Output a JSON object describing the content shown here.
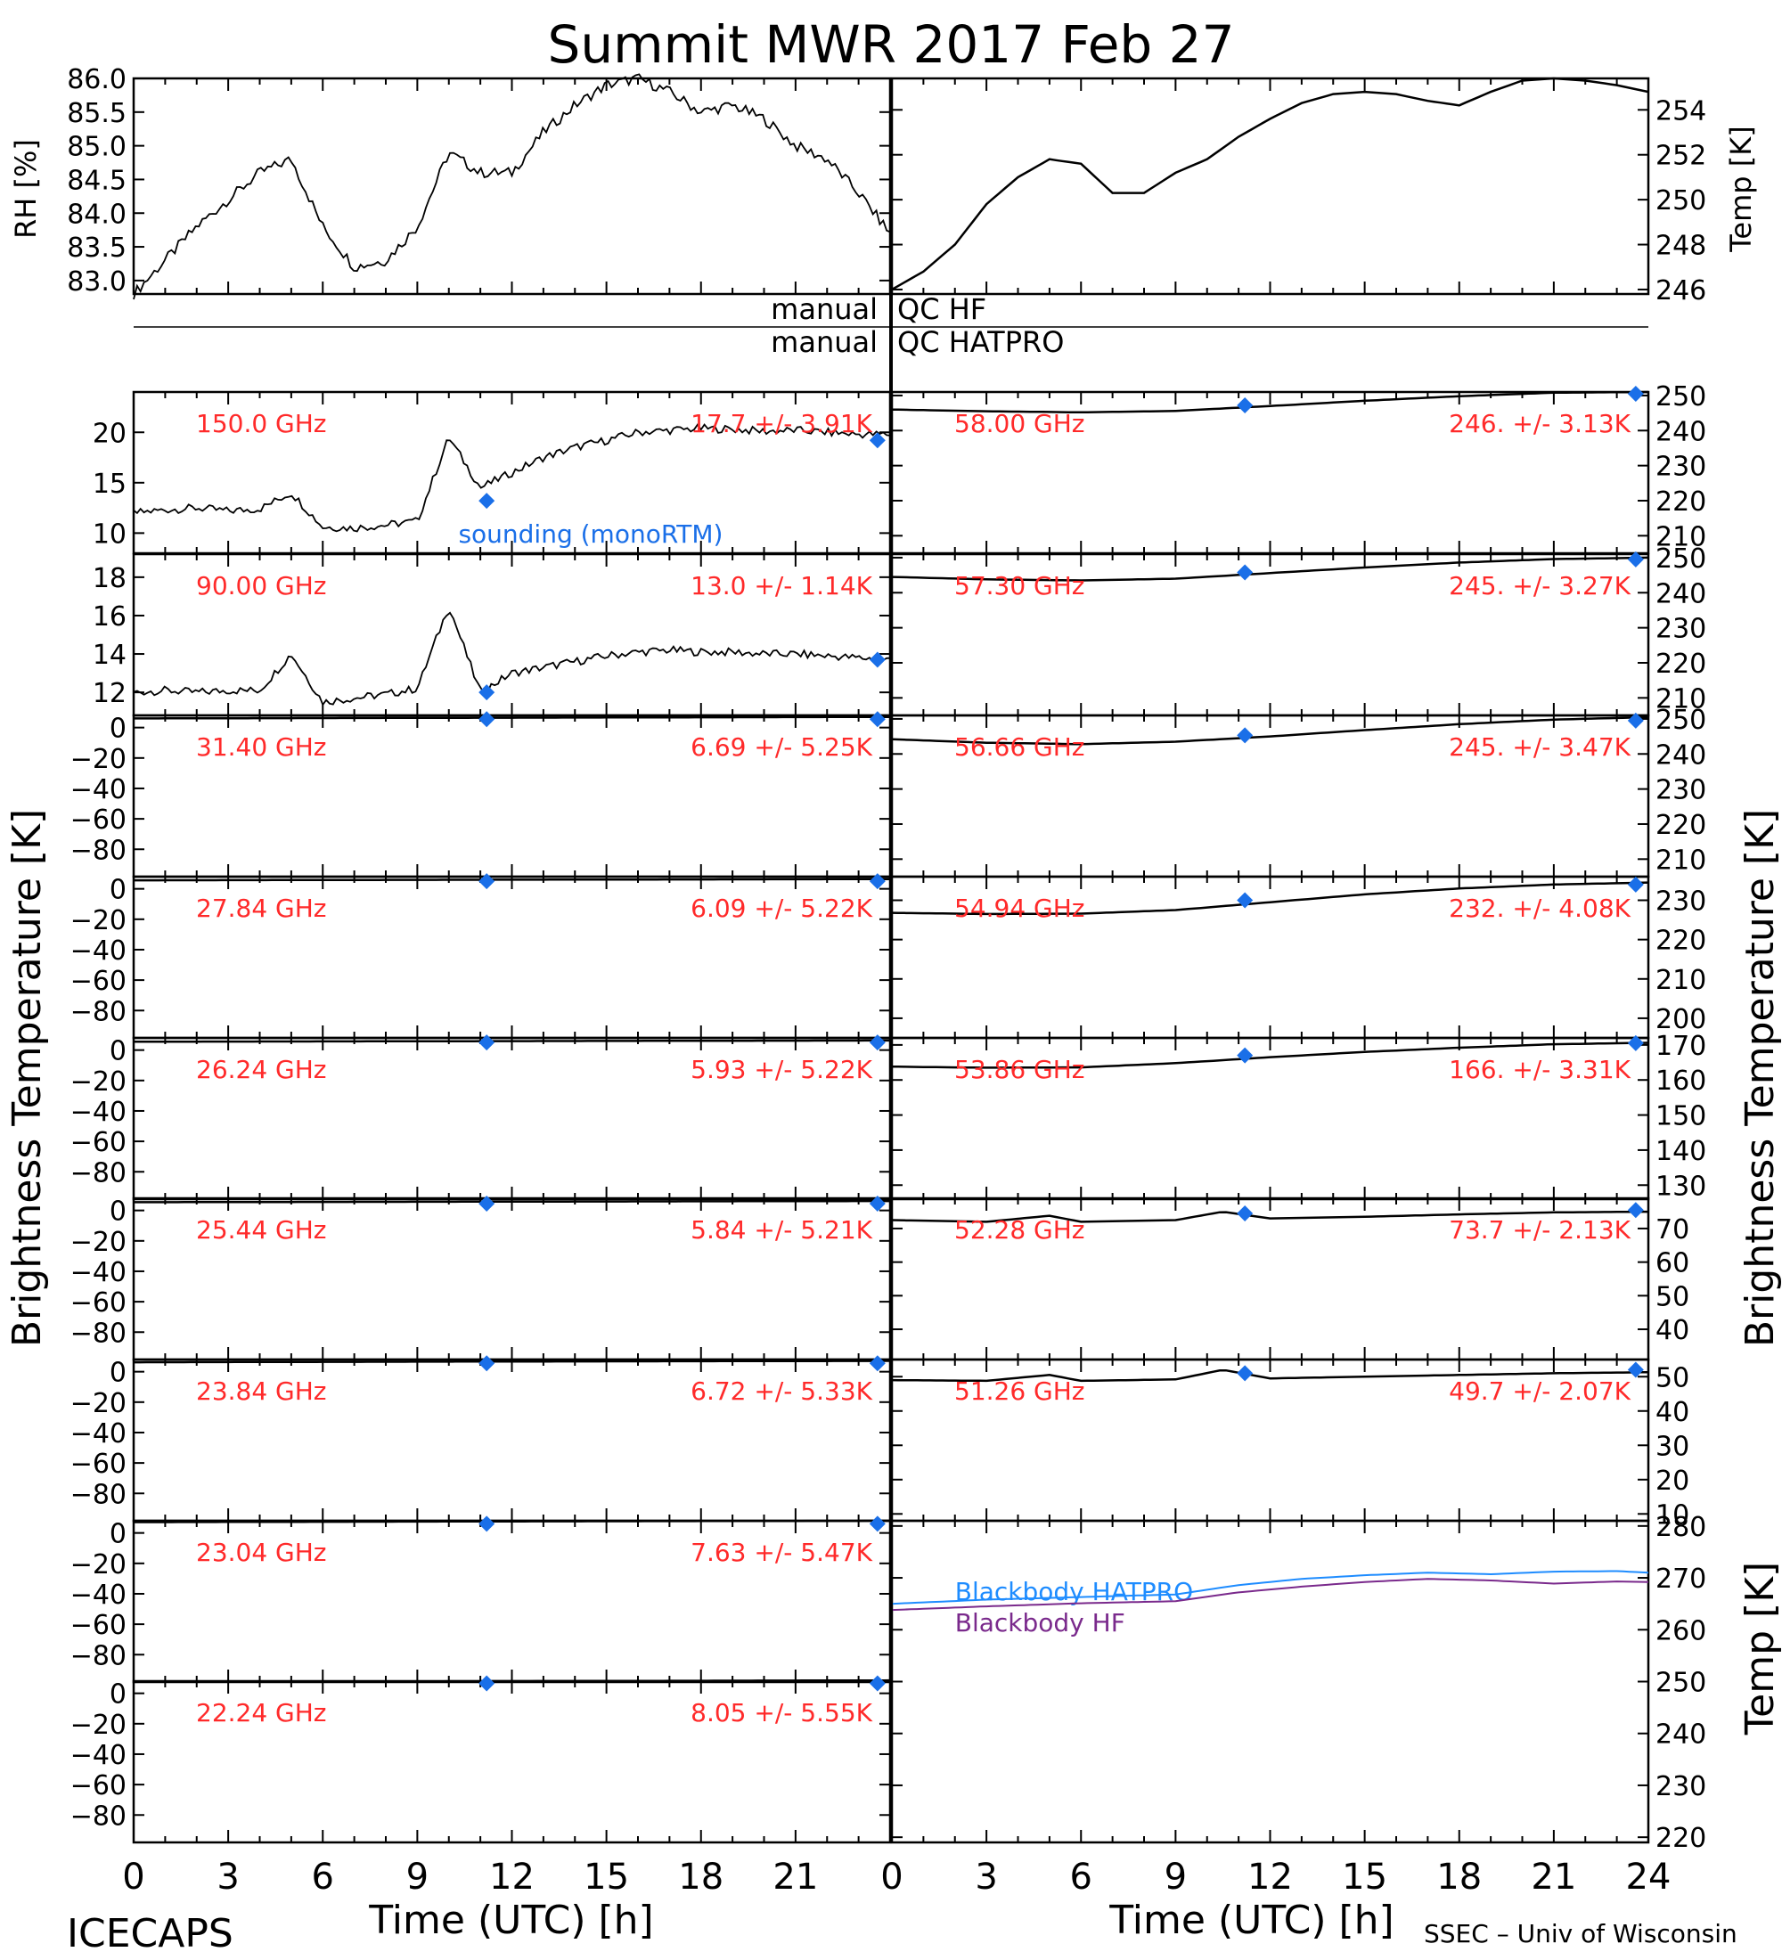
{
  "title": "Summit MWR 2017 Feb 27",
  "footer": {
    "left": "ICECAPS",
    "right": "SSEC – Univ of Wisconsin"
  },
  "xaxis": {
    "label": "Time (UTC) [h]",
    "ticks_left": [
      0,
      3,
      6,
      9,
      12,
      15,
      18,
      21
    ],
    "ticks_right": [
      0,
      3,
      6,
      9,
      12,
      15,
      18,
      21,
      24
    ]
  },
  "ylabels": {
    "rh": "RH [%]",
    "temp_top": "Temp [K]",
    "tb_left": "Brightness Temperature [K]",
    "tb_right": "Brightness Temperature [K]",
    "temp_bottom": "Temp [K]"
  },
  "qc": {
    "hf_label": "manual",
    "hf_text": "QC HF",
    "hatpro_label": "manual",
    "hatpro_text": "QC HATPRO"
  },
  "colors": {
    "text_red": "#ff2a2a",
    "sounding_blue": "#1a6fe8",
    "hatpro_line": "#1e8cff",
    "hf_line": "#7a2a8c",
    "trace": "#000000"
  },
  "chart_data": [
    {
      "id": "rh",
      "type": "line",
      "ylabel": "RH [%]",
      "xlim": [
        0,
        24
      ],
      "ylim": [
        82.8,
        86.0
      ],
      "yticks": [
        "83.0",
        "83.5",
        "84.0",
        "84.5",
        "85.0",
        "85.5",
        "86.0"
      ],
      "x": [
        0,
        1,
        2,
        3,
        4,
        5,
        6,
        7,
        8,
        9,
        10,
        11,
        12,
        13,
        14,
        15,
        16,
        17,
        18,
        19,
        20,
        21,
        22,
        23,
        24
      ],
      "y": [
        82.8,
        83.3,
        83.8,
        84.2,
        84.6,
        84.8,
        83.8,
        83.2,
        83.3,
        83.8,
        84.9,
        84.6,
        84.6,
        85.2,
        85.6,
        85.9,
        86.0,
        85.8,
        85.5,
        85.6,
        85.4,
        85.0,
        84.8,
        84.3,
        83.7
      ]
    },
    {
      "id": "temp_top",
      "type": "line",
      "ylabel": "Temp [K]",
      "xlim": [
        0,
        24
      ],
      "ylim": [
        245.8,
        255.4
      ],
      "yticks": [
        "246",
        "248",
        "250",
        "252",
        "254"
      ],
      "x": [
        0,
        1,
        2,
        3,
        4,
        5,
        6,
        7,
        8,
        9,
        10,
        11,
        12,
        13,
        14,
        15,
        16,
        17,
        18,
        19,
        20,
        21,
        22,
        23,
        24
      ],
      "y": [
        246.0,
        246.8,
        248.0,
        249.8,
        251.0,
        251.8,
        251.6,
        250.3,
        250.3,
        251.2,
        251.8,
        252.8,
        253.6,
        254.3,
        254.7,
        254.8,
        254.7,
        254.4,
        254.2,
        254.8,
        255.3,
        255.4,
        255.3,
        255.1,
        254.8
      ]
    },
    {
      "id": "tb_150",
      "type": "line",
      "label": "150.0 GHz",
      "stat": "17.7 +/- 3.91K",
      "xlim": [
        0,
        24
      ],
      "ylim": [
        8,
        24
      ],
      "yticks": [
        "10",
        "15",
        "20"
      ],
      "annotation": "sounding (monoRTM)",
      "x": [
        0,
        1,
        2,
        3,
        4,
        5,
        6,
        7,
        8,
        9,
        10,
        11,
        12,
        13,
        14,
        15,
        16,
        17,
        18,
        19,
        20,
        21,
        22,
        23,
        24
      ],
      "y": [
        12,
        12.3,
        12.5,
        12.2,
        12.4,
        14,
        10.6,
        10.5,
        10.8,
        11.2,
        19.5,
        14.5,
        16,
        17.5,
        18.5,
        19.2,
        20,
        20.2,
        20.4,
        20.3,
        20.1,
        20.2,
        20.0,
        19.8,
        19.8
      ],
      "sounding": {
        "x": [
          11.2,
          23.6
        ],
        "y": [
          13.2,
          19.2
        ]
      }
    },
    {
      "id": "tb_90",
      "type": "line",
      "label": "90.00 GHz",
      "stat": "13.0 +/-  1.14K",
      "xlim": [
        0,
        24
      ],
      "ylim": [
        10.8,
        19.2
      ],
      "yticks": [
        "12",
        "14",
        "16",
        "18"
      ],
      "x": [
        0,
        1,
        2,
        3,
        4,
        5,
        6,
        7,
        8,
        9,
        10,
        11,
        12,
        13,
        14,
        15,
        16,
        17,
        18,
        19,
        20,
        21,
        22,
        23,
        24
      ],
      "y": [
        12.0,
        12.1,
        12.0,
        12.1,
        12.1,
        14.0,
        11.5,
        11.7,
        11.9,
        12.2,
        16.5,
        12.0,
        13.0,
        13.3,
        13.6,
        13.9,
        14.1,
        14.2,
        14.1,
        14.1,
        14.0,
        14.0,
        13.9,
        13.8,
        13.7
      ],
      "sounding": {
        "x": [
          11.2,
          23.6
        ],
        "y": [
          12.0,
          13.7
        ]
      }
    },
    {
      "id": "tb_31",
      "type": "line",
      "label": "31.40 GHz",
      "stat": "6.69 +/- 5.25K",
      "xlim": [
        0,
        24
      ],
      "ylim": [
        -98,
        8
      ],
      "yticks": [
        "0",
        "−20",
        "−40",
        "−60",
        "−80"
      ],
      "x": [
        0,
        12,
        24
      ],
      "y": [
        6,
        6.5,
        7
      ],
      "sounding": {
        "x": [
          11.2,
          23.6
        ],
        "y": [
          5.5,
          5.5
        ]
      }
    },
    {
      "id": "tb_27",
      "type": "line",
      "label": "27.84 GHz",
      "stat": "6.09 +/- 5.22K",
      "xlim": [
        0,
        24
      ],
      "ylim": [
        -98,
        8
      ],
      "yticks": [
        "0",
        "−20",
        "−40",
        "−60",
        "−80"
      ],
      "x": [
        0,
        12,
        24
      ],
      "y": [
        5.6,
        6,
        6.4
      ],
      "sounding": {
        "x": [
          11.2,
          23.6
        ],
        "y": [
          5,
          5
        ]
      }
    },
    {
      "id": "tb_26",
      "type": "line",
      "label": "26.24 GHz",
      "stat": "5.93 +/- 5.22K",
      "xlim": [
        0,
        24
      ],
      "ylim": [
        -98,
        8
      ],
      "yticks": [
        "0",
        "−20",
        "−40",
        "−60",
        "−80"
      ],
      "x": [
        0,
        12,
        24
      ],
      "y": [
        5.5,
        5.9,
        6.3
      ],
      "sounding": {
        "x": [
          11.2,
          23.6
        ],
        "y": [
          5,
          5
        ]
      }
    },
    {
      "id": "tb_25",
      "type": "line",
      "label": "25.44 GHz",
      "stat": "5.84 +/- 5.21K",
      "xlim": [
        0,
        24
      ],
      "ylim": [
        -98,
        8
      ],
      "yticks": [
        "0",
        "−20",
        "−40",
        "−60",
        "−80"
      ],
      "x": [
        0,
        12,
        24
      ],
      "y": [
        5.4,
        5.8,
        6.2
      ],
      "sounding": {
        "x": [
          11.2,
          23.6
        ],
        "y": [
          4.5,
          4.5
        ]
      }
    },
    {
      "id": "tb_23_84",
      "type": "line",
      "label": "23.84 GHz",
      "stat": "6.72 +/- 5.33K",
      "xlim": [
        0,
        24
      ],
      "ylim": [
        -98,
        8
      ],
      "yticks": [
        "0",
        "−20",
        "−40",
        "−60",
        "−80"
      ],
      "x": [
        0,
        12,
        24
      ],
      "y": [
        6.2,
        6.7,
        7.1
      ],
      "sounding": {
        "x": [
          11.2,
          23.6
        ],
        "y": [
          5.5,
          5.5
        ]
      }
    },
    {
      "id": "tb_23_04",
      "type": "line",
      "label": "23.04 GHz",
      "stat": "7.63 +/- 5.47K",
      "xlim": [
        0,
        24
      ],
      "ylim": [
        -98,
        8
      ],
      "yticks": [
        "0",
        "−20",
        "−40",
        "−60",
        "−80"
      ],
      "x": [
        0,
        12,
        24
      ],
      "y": [
        7.1,
        7.6,
        8.0
      ],
      "sounding": {
        "x": [
          11.2,
          23.6
        ],
        "y": [
          6,
          6
        ]
      }
    },
    {
      "id": "tb_22",
      "type": "line",
      "label": "22.24 GHz",
      "stat": "8.05 +/- 5.55K",
      "xlim": [
        0,
        24
      ],
      "ylim": [
        -98,
        8
      ],
      "yticks": [
        "0",
        "−20",
        "−40",
        "−60",
        "−80"
      ],
      "x": [
        0,
        12,
        24
      ],
      "y": [
        7.5,
        8.0,
        8.5
      ],
      "sounding": {
        "x": [
          11.2,
          23.6
        ],
        "y": [
          6.5,
          6.5
        ]
      }
    },
    {
      "id": "tb_58",
      "type": "line",
      "label": "58.00 GHz",
      "stat": "246. +/- 3.13K",
      "xlim": [
        0,
        24
      ],
      "ylim": [
        205,
        251
      ],
      "yticks": [
        "210",
        "220",
        "230",
        "240",
        "250"
      ],
      "x": [
        0,
        3,
        6,
        9,
        12,
        15,
        18,
        21,
        24
      ],
      "y": [
        246.0,
        245.5,
        245.2,
        245.6,
        247.0,
        248.5,
        249.8,
        250.8,
        251.0
      ],
      "sounding": {
        "x": [
          11.2,
          23.6
        ],
        "y": [
          247.2,
          250.5
        ]
      }
    },
    {
      "id": "tb_57",
      "type": "line",
      "label": "57.30 GHz",
      "stat": "245. +/- 3.27K",
      "xlim": [
        0,
        24
      ],
      "ylim": [
        205,
        251
      ],
      "yticks": [
        "210",
        "220",
        "230",
        "240",
        "250"
      ],
      "x": [
        0,
        3,
        6,
        9,
        12,
        15,
        18,
        21,
        24
      ],
      "y": [
        244.5,
        243.8,
        243.5,
        244.0,
        245.6,
        247.2,
        248.6,
        249.6,
        250.0
      ],
      "sounding": {
        "x": [
          11.2,
          23.6
        ],
        "y": [
          245.8,
          249.5
        ]
      }
    },
    {
      "id": "tb_56",
      "type": "line",
      "label": "56.66 GHz",
      "stat": "245. +/- 3.47K",
      "xlim": [
        0,
        24
      ],
      "ylim": [
        205,
        251
      ],
      "yticks": [
        "210",
        "220",
        "230",
        "240",
        "250"
      ],
      "x": [
        0,
        3,
        6,
        9,
        12,
        15,
        18,
        21,
        24
      ],
      "y": [
        244.2,
        243.2,
        242.8,
        243.5,
        245.0,
        246.8,
        248.5,
        249.8,
        250.5
      ],
      "sounding": {
        "x": [
          11.2,
          23.6
        ],
        "y": [
          245.3,
          249.5
        ]
      }
    },
    {
      "id": "tb_54",
      "type": "line",
      "label": "54.94 GHz",
      "stat": "232. +/- 4.08K",
      "xlim": [
        0,
        24
      ],
      "ylim": [
        195,
        236
      ],
      "yticks": [
        "200",
        "210",
        "220",
        "230"
      ],
      "x": [
        0,
        3,
        6,
        9,
        12,
        15,
        18,
        21,
        24
      ],
      "y": [
        226.8,
        226.5,
        226.6,
        227.5,
        229.5,
        231.5,
        233.0,
        234.0,
        234.5
      ],
      "sounding": {
        "x": [
          11.2,
          23.6
        ],
        "y": [
          230.0,
          234.0
        ]
      }
    },
    {
      "id": "tb_53",
      "type": "line",
      "label": "53.86 GHz",
      "stat": "166. +/- 3.31K",
      "xlim": [
        0,
        24
      ],
      "ylim": [
        126,
        172
      ],
      "yticks": [
        "130",
        "140",
        "150",
        "160",
        "170"
      ],
      "x": [
        0,
        3,
        6,
        9,
        12,
        15,
        18,
        21,
        24
      ],
      "y": [
        163.8,
        163.5,
        163.6,
        164.8,
        166.5,
        168.0,
        169.2,
        170.2,
        170.6
      ],
      "sounding": {
        "x": [
          11.2,
          23.6
        ],
        "y": [
          167.0,
          170.5
        ]
      }
    },
    {
      "id": "tb_52",
      "type": "line",
      "label": "52.28 GHz",
      "stat": "73.7 +/- 2.13K",
      "xlim": [
        0,
        24
      ],
      "ylim": [
        31,
        79
      ],
      "yticks": [
        "40",
        "50",
        "60",
        "70"
      ],
      "x": [
        0,
        3,
        5,
        6,
        9,
        10.5,
        12,
        15,
        18,
        21,
        24
      ],
      "y": [
        72.5,
        72.0,
        73.8,
        72.0,
        72.5,
        75.0,
        73.0,
        73.5,
        74.2,
        74.8,
        75.0
      ],
      "sounding": {
        "x": [
          11.2,
          23.6
        ],
        "y": [
          74.5,
          75.5
        ]
      }
    },
    {
      "id": "tb_51",
      "type": "line",
      "label": "51.26 GHz",
      "stat": "49.7 +/- 2.07K",
      "xlim": [
        0,
        24
      ],
      "ylim": [
        8,
        55
      ],
      "yticks": [
        "10",
        "20",
        "30",
        "40",
        "50"
      ],
      "x": [
        0,
        3,
        5,
        6,
        9,
        10.5,
        12,
        15,
        18,
        21,
        24
      ],
      "y": [
        49.0,
        48.8,
        50.5,
        48.8,
        49.2,
        52.0,
        49.5,
        50.0,
        50.5,
        51.0,
        51.3
      ],
      "sounding": {
        "x": [
          11.2,
          23.6
        ],
        "y": [
          51.0,
          52.0
        ]
      }
    },
    {
      "id": "blackbody",
      "type": "line",
      "ylabel": "Temp [K]",
      "xlim": [
        0,
        24
      ],
      "ylim": [
        219,
        281
      ],
      "yticks": [
        "220",
        "230",
        "240",
        "250",
        "260",
        "270",
        "280"
      ],
      "series": [
        {
          "name": "Blackbody HATPRO",
          "x": [
            0,
            3,
            6,
            9,
            11,
            13,
            15,
            17,
            19,
            21,
            23,
            24
          ],
          "y": [
            265.0,
            265.8,
            266.3,
            266.8,
            268.6,
            269.8,
            270.5,
            271.0,
            270.7,
            271.2,
            271.3,
            271.0
          ]
        },
        {
          "name": "Blackbody HF",
          "x": [
            0,
            3,
            6,
            9,
            11,
            13,
            15,
            17,
            19,
            21,
            23,
            24
          ],
          "y": [
            263.8,
            264.5,
            265.1,
            265.5,
            267.2,
            268.3,
            269.2,
            269.8,
            269.5,
            268.9,
            269.3,
            269.2
          ]
        }
      ]
    }
  ]
}
